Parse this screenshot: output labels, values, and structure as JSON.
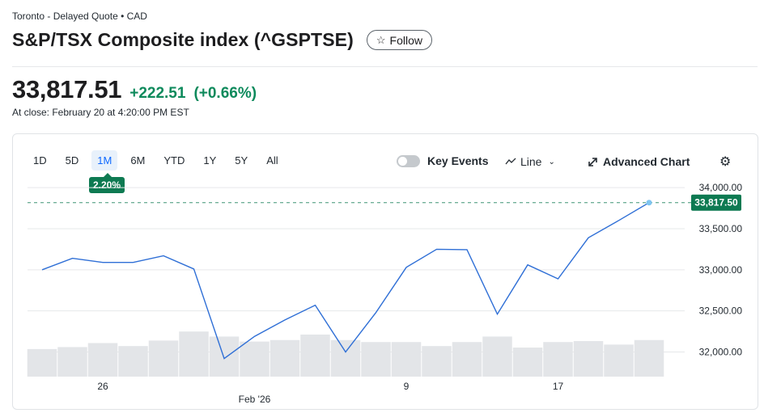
{
  "header": {
    "exchange_line": "Toronto - Delayed Quote • CAD",
    "title": "S&P/TSX Composite index (^GSPTSE)",
    "follow_label": "Follow",
    "follow_icon": "star-icon"
  },
  "quote": {
    "price": "33,817.51",
    "change": "+222.51",
    "change_pct": "(+0.66%)",
    "close_time": "At close: February 20 at 4:20:00 PM EST",
    "positive_color": "#0e8a5c"
  },
  "controls": {
    "ranges": [
      "1D",
      "5D",
      "1M",
      "6M",
      "YTD",
      "1Y",
      "5Y",
      "All"
    ],
    "active_range": "1M",
    "range_change": "2.20%",
    "key_events_label": "Key Events",
    "key_events_on": false,
    "chart_type_label": "Line",
    "advanced_chart_label": "Advanced Chart"
  },
  "chart_data": {
    "type": "line",
    "line_color": "#2f6fd6",
    "ylim": [
      31700,
      34100
    ],
    "y_ticks": [
      34000,
      33500,
      33000,
      32500,
      32000
    ],
    "y_tick_labels": [
      "34,000.00",
      "33,500.00",
      "33,000.00",
      "32,500.00",
      "32,000.00"
    ],
    "last_value": 33817.5,
    "last_value_label": "33,817.50",
    "values": [
      33000,
      33140,
      33090,
      33090,
      33170,
      33010,
      31920,
      32190,
      32390,
      32570,
      32000,
      32480,
      33030,
      33250,
      33245,
      32460,
      33060,
      32890,
      33390,
      33600,
      33817.5
    ],
    "volume_relative": [
      0.55,
      0.59,
      0.67,
      0.61,
      0.72,
      0.9,
      0.8,
      0.7,
      0.73,
      0.84,
      0.73,
      0.69,
      0.69,
      0.61,
      0.69,
      0.8,
      0.58,
      0.69,
      0.71,
      0.64,
      0.73
    ],
    "x_tick_labels": [
      {
        "index": 2,
        "label": "26"
      },
      {
        "index": 7,
        "label": "Feb '26"
      },
      {
        "index": 12,
        "label": "9"
      },
      {
        "index": 17,
        "label": "17"
      }
    ]
  }
}
